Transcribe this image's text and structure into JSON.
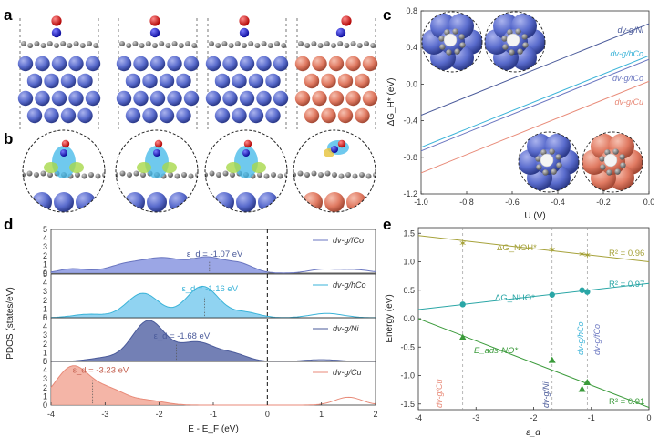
{
  "panels": {
    "a": "a",
    "b": "b",
    "c": "c",
    "d": "d",
    "e": "e"
  },
  "colors": {
    "ni": "#4a5a9a",
    "hco": "#3ab3d8",
    "fco": "#6a76c0",
    "cu": "#e88a78",
    "green": "#3a9a3a",
    "olive": "#a6a23a",
    "teal": "#2aa6a6",
    "metal_blue": "#5a6ccd",
    "metal_cu": "#e07a62",
    "graphene": "#888888"
  },
  "panel_c": {
    "ylabel": "ΔG_H* (eV)",
    "xlabel": "U (V)",
    "xticks": [
      "-1.0",
      "-0.8",
      "-0.6",
      "-0.4",
      "-0.2",
      "0.0"
    ],
    "yticks": [
      "0.8",
      "0.4",
      "0.0",
      "-0.4",
      "-0.8",
      "-1.2"
    ],
    "labels": [
      "dv-g/Ni",
      "dv-g/hCo",
      "dv-g/fCo",
      "dv-g/Cu"
    ]
  },
  "panel_d": {
    "ylabel": "PDOS (states/eV)",
    "xlabel": "E - E_F (eV)",
    "xticks": [
      "-4",
      "-3",
      "-2",
      "-1",
      "0",
      "1",
      "2"
    ],
    "subyticks": [
      "0",
      "1",
      "2",
      "3",
      "4",
      "5"
    ],
    "annotations": [
      "ε_d = -1.07 eV",
      "ε_d = -1.16 eV",
      "ε_d = -1.68 eV",
      "ε_d = -3.23 eV"
    ],
    "legends": [
      "dv-g/fCo",
      "dv-g/hCo",
      "dv-g/Ni",
      "dv-g/Cu"
    ]
  },
  "panel_e": {
    "ylabel": "Energy (eV)",
    "xlabel": "ε_d",
    "xticks": [
      "-4",
      "-3",
      "-2",
      "-1",
      "0"
    ],
    "yticks": [
      "1.5",
      "1.0",
      "0.5",
      "0.0",
      "-0.5",
      "-1.0",
      "-1.5"
    ],
    "series_labels": [
      "ΔG_NOH*",
      "ΔG_NHO*",
      "E_ads-NO*"
    ],
    "r2": [
      "R² = 0.96",
      "R² = 0.97",
      "R² = 0.91"
    ],
    "vlabels": [
      "dv-g/Cu",
      "dv-g/Ni",
      "dv-g/hCo",
      "dv-g/fCo"
    ]
  },
  "chart_data": [
    {
      "type": "line",
      "panel": "c",
      "xlabel": "U (V)",
      "ylabel": "ΔG_H* (eV)",
      "xlim": [
        -1.0,
        0.0
      ],
      "ylim": [
        -1.2,
        0.8
      ],
      "series": [
        {
          "name": "dv-g/Ni",
          "x": [
            -1.0,
            0.0
          ],
          "y": [
            -0.34,
            0.66
          ]
        },
        {
          "name": "dv-g/hCo",
          "x": [
            -1.0,
            0.0
          ],
          "y": [
            -0.69,
            0.31
          ]
        },
        {
          "name": "dv-g/fCo",
          "x": [
            -1.0,
            0.0
          ],
          "y": [
            -0.73,
            0.27
          ]
        },
        {
          "name": "dv-g/Cu",
          "x": [
            -1.0,
            0.0
          ],
          "y": [
            -0.97,
            0.03
          ]
        }
      ]
    },
    {
      "type": "area",
      "panel": "d",
      "xlabel": "E - E_F (eV)",
      "ylabel": "PDOS (states/eV)",
      "xlim": [
        -4,
        2
      ],
      "ylim": [
        0,
        5
      ],
      "series": [
        {
          "name": "dv-g/fCo",
          "d_band_center": -1.07
        },
        {
          "name": "dv-g/hCo",
          "d_band_center": -1.16
        },
        {
          "name": "dv-g/Ni",
          "d_band_center": -1.68
        },
        {
          "name": "dv-g/Cu",
          "d_band_center": -3.23
        }
      ]
    },
    {
      "type": "scatter",
      "panel": "e",
      "xlabel": "ε_d",
      "ylabel": "Energy (eV)",
      "xlim": [
        -4,
        0
      ],
      "ylim": [
        -1.6,
        1.6
      ],
      "x": [
        -3.23,
        -1.68,
        -1.16,
        -1.07
      ],
      "series": [
        {
          "name": "ΔG_NOH*",
          "y": [
            1.33,
            1.22,
            1.14,
            1.12
          ],
          "fit": [
            [
              -4,
              1.46
            ],
            [
              0,
              1.0
            ]
          ],
          "r2": 0.96
        },
        {
          "name": "ΔG_NHO*",
          "y": [
            0.25,
            0.42,
            0.5,
            0.47
          ],
          "fit": [
            [
              -4,
              0.16
            ],
            [
              0,
              0.62
            ]
          ],
          "r2": 0.97
        },
        {
          "name": "E_ads-NO*",
          "y": [
            -0.33,
            -0.73,
            -1.24,
            -1.12
          ],
          "fit": [
            [
              -4,
              0.0
            ],
            [
              0,
              -1.56
            ]
          ],
          "r2": 0.91
        }
      ]
    }
  ]
}
